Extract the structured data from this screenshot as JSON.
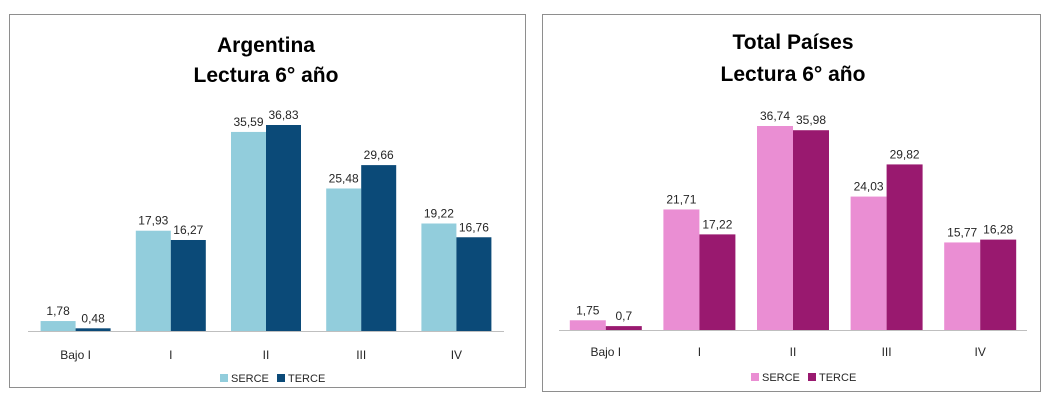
{
  "chart_data": [
    {
      "type": "bar",
      "title": "Argentina",
      "subtitle": "Lectura 6° año",
      "categories": [
        "Bajo I",
        "I",
        "II",
        "III",
        "IV"
      ],
      "series": [
        {
          "name": "SERCE",
          "color": "#92CDDC",
          "values": [
            1.78,
            17.93,
            35.59,
            25.48,
            19.22
          ],
          "labels": [
            "1,78",
            "17,93",
            "35,59",
            "25,48",
            "19,22"
          ]
        },
        {
          "name": "TERCE",
          "color": "#0B4A78",
          "values": [
            0.48,
            16.27,
            36.83,
            29.66,
            16.76
          ],
          "labels": [
            "0,48",
            "16,27",
            "36,83",
            "29,66",
            "16,76"
          ]
        }
      ],
      "ylim": [
        0,
        36.83
      ],
      "grid": false,
      "legend": "bottom"
    },
    {
      "type": "bar",
      "title": "Total Países",
      "subtitle": "Lectura 6° año",
      "categories": [
        "Bajo I",
        "I",
        "II",
        "III",
        "IV"
      ],
      "series": [
        {
          "name": "SERCE",
          "color": "#EA8ED3",
          "values": [
            1.75,
            21.71,
            36.74,
            24.03,
            15.77
          ],
          "labels": [
            "1,75",
            "21,71",
            "36,74",
            "24,03",
            "15,77"
          ]
        },
        {
          "name": "TERCE",
          "color": "#99196F",
          "values": [
            0.7,
            17.22,
            35.98,
            29.82,
            16.28
          ],
          "labels": [
            "0,7",
            "17,22",
            "35,98",
            "29,82",
            "16,28"
          ]
        }
      ],
      "ylim": [
        0,
        36.74
      ],
      "grid": false,
      "legend": "bottom"
    }
  ]
}
